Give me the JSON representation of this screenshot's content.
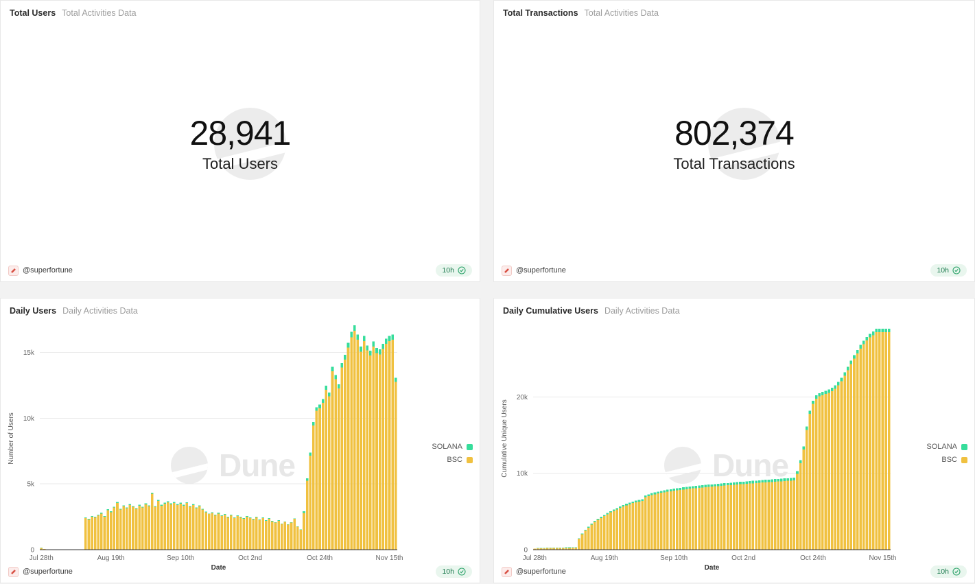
{
  "watermark": {
    "text": "Dune"
  },
  "footer": {
    "author": "@superfortune",
    "refresh": "10h"
  },
  "colors": {
    "bsc": "#F0C140",
    "solana": "#36DD9B",
    "badge_bg": "#E9F6EE",
    "badge_text": "#1D7A4F",
    "axis_line": "#2f2f2f",
    "grid_line": "#e9e9e9",
    "tick_text": "#666666"
  },
  "panels": {
    "total_users": {
      "title": "Total Users",
      "subtitle": "Total Activities Data",
      "value": "28,941",
      "label": "Total Users"
    },
    "total_transactions": {
      "title": "Total Transactions",
      "subtitle": "Total Activities Data",
      "value": "802,374",
      "label": "Total Transactions"
    },
    "daily_users": {
      "title": "Daily Users",
      "subtitle": "Daily Activities Data"
    },
    "daily_cumulative_users": {
      "title": "Daily Cumulative Users",
      "subtitle": "Daily Activities Data"
    }
  },
  "chart_data": [
    {
      "type": "bar",
      "stacked": true,
      "title": "Daily Users",
      "xlabel": "Date",
      "ylabel": "Number of Users",
      "x_start": "Jul 28th",
      "x_end": "Nov 17th",
      "x_cadence": "daily",
      "n_points": 113,
      "ylim": [
        0,
        16900
      ],
      "grid": "horizontal",
      "legend_position": "right",
      "x_ticks": [
        {
          "index": 0,
          "label": "Jul 28th"
        },
        {
          "index": 22,
          "label": "Aug 19th"
        },
        {
          "index": 44,
          "label": "Sep 10th"
        },
        {
          "index": 66,
          "label": "Oct 2nd"
        },
        {
          "index": 88,
          "label": "Oct 24th"
        },
        {
          "index": 110,
          "label": "Nov 15th"
        }
      ],
      "y_ticks": [
        {
          "value": 0,
          "label": "0"
        },
        {
          "value": 5000,
          "label": "5k"
        },
        {
          "value": 10000,
          "label": "10k"
        },
        {
          "value": 15000,
          "label": "15k"
        }
      ],
      "legend": [
        {
          "label": "SOLANA",
          "color": "#36DD9B"
        },
        {
          "label": "BSC",
          "color": "#F0C140"
        }
      ],
      "series": [
        {
          "name": "BSC",
          "color": "#F0C140",
          "values": [
            120,
            50,
            20,
            8,
            8,
            8,
            8,
            8,
            8,
            8,
            8,
            8,
            8,
            8,
            2400,
            2300,
            2500,
            2450,
            2600,
            2750,
            2500,
            3000,
            2850,
            3200,
            3550,
            3050,
            3300,
            3150,
            3400,
            3250,
            3100,
            3350,
            3200,
            3450,
            3300,
            4250,
            3250,
            3700,
            3350,
            3500,
            3600,
            3450,
            3550,
            3400,
            3500,
            3350,
            3550,
            3250,
            3400,
            3150,
            3300,
            3050,
            2850,
            2700,
            2800,
            2600,
            2750,
            2550,
            2650,
            2450,
            2600,
            2400,
            2550,
            2450,
            2350,
            2500,
            2400,
            2300,
            2450,
            2250,
            2400,
            2200,
            2350,
            2150,
            2050,
            2200,
            1950,
            2100,
            1900,
            2050,
            2350,
            1750,
            1500,
            2800,
            5250,
            7150,
            9450,
            10550,
            10750,
            11150,
            12150,
            11650,
            13550,
            12950,
            12250,
            13850,
            14450,
            15350,
            16150,
            16650,
            15950,
            15050,
            15850,
            15150,
            14750,
            15450,
            14950,
            14850,
            15250,
            15650,
            15850,
            15950,
            12750
          ]
        },
        {
          "name": "SOLANA",
          "color": "#36DD9B",
          "values": [
            25,
            10,
            5,
            2,
            2,
            2,
            2,
            2,
            2,
            2,
            2,
            2,
            2,
            2,
            55,
            50,
            60,
            55,
            65,
            60,
            50,
            70,
            60,
            65,
            75,
            60,
            70,
            65,
            70,
            65,
            60,
            70,
            65,
            70,
            65,
            90,
            70,
            80,
            70,
            75,
            80,
            75,
            80,
            70,
            75,
            65,
            60,
            70,
            60,
            65,
            55,
            60,
            55,
            50,
            55,
            50,
            55,
            50,
            50,
            45,
            50,
            45,
            50,
            45,
            45,
            50,
            45,
            45,
            50,
            40,
            45,
            40,
            45,
            40,
            40,
            45,
            40,
            50,
            35,
            30,
            30,
            30,
            30,
            130,
            180,
            220,
            260,
            280,
            280,
            290,
            310,
            300,
            340,
            330,
            310,
            350,
            360,
            380,
            400,
            410,
            400,
            380,
            400,
            380,
            370,
            390,
            380,
            380,
            390,
            400,
            400,
            400,
            320
          ]
        }
      ]
    },
    {
      "type": "bar",
      "stacked": true,
      "title": "Daily Cumulative Users",
      "xlabel": "Date",
      "ylabel": "Cumulative Unique Users",
      "x_start": "Jul 28th",
      "x_end": "Nov 17th",
      "x_cadence": "daily",
      "n_points": 113,
      "ylim": [
        0,
        29100
      ],
      "grid": "horizontal",
      "legend_position": "right",
      "x_ticks": [
        {
          "index": 0,
          "label": "Jul 28th"
        },
        {
          "index": 22,
          "label": "Aug 19th"
        },
        {
          "index": 44,
          "label": "Sep 10th"
        },
        {
          "index": 66,
          "label": "Oct 2nd"
        },
        {
          "index": 88,
          "label": "Oct 24th"
        },
        {
          "index": 110,
          "label": "Nov 15th"
        }
      ],
      "y_ticks": [
        {
          "value": 0,
          "label": "0"
        },
        {
          "value": 10000,
          "label": "10k"
        },
        {
          "value": 20000,
          "label": "20k"
        }
      ],
      "legend": [
        {
          "label": "SOLANA",
          "color": "#36DD9B"
        },
        {
          "label": "BSC",
          "color": "#F0C140"
        }
      ],
      "series": [
        {
          "name": "BSC",
          "color": "#F0C140",
          "values": [
            120,
            170,
            190,
            198,
            207,
            212,
            219,
            225,
            230,
            236,
            241,
            246,
            251,
            256,
            1430,
            2015,
            2500,
            2888,
            3278,
            3618,
            3910,
            4152,
            4395,
            4638,
            4881,
            5075,
            5269,
            5463,
            5657,
            5802,
            5947,
            6092,
            6188,
            6284,
            6380,
            6865,
            7010,
            7155,
            7251,
            7347,
            7443,
            7520,
            7587,
            7654,
            7711,
            7768,
            7825,
            7877,
            7925,
            7973,
            8016,
            8059,
            8102,
            8140,
            8178,
            8216,
            8254,
            8292,
            8325,
            8358,
            8391,
            8424,
            8457,
            8490,
            8523,
            8556,
            8589,
            8622,
            8655,
            8688,
            8721,
            8754,
            8782,
            8810,
            8838,
            8866,
            8894,
            8922,
            8950,
            8978,
            9006,
            9034,
            9062,
            9935,
            11320,
            13105,
            15695,
            17788,
            19082,
            19778,
            20074,
            20221,
            20368,
            20545,
            20742,
            21059,
            21506,
            22053,
            22750,
            23497,
            24294,
            24991,
            25688,
            26335,
            26882,
            27380,
            27778,
            28076,
            28465,
            28465,
            28465,
            28465,
            28465
          ]
        },
        {
          "name": "SOLANA",
          "color": "#36DD9B",
          "values": [
            30,
            40,
            45,
            47,
            48,
            50,
            51,
            52,
            53,
            54,
            55,
            56,
            57,
            58,
            70,
            85,
            100,
            112,
            122,
            132,
            140,
            148,
            155,
            162,
            169,
            175,
            181,
            187,
            193,
            198,
            203,
            208,
            212,
            216,
            220,
            235,
            240,
            245,
            249,
            253,
            257,
            260,
            263,
            266,
            269,
            272,
            275,
            278,
            280,
            282,
            284,
            286,
            288,
            290,
            292,
            294,
            296,
            298,
            300,
            302,
            304,
            306,
            308,
            310,
            312,
            314,
            316,
            318,
            320,
            322,
            324,
            326,
            328,
            330,
            332,
            334,
            336,
            338,
            340,
            342,
            344,
            346,
            348,
            365,
            380,
            395,
            405,
            412,
            418,
            422,
            426,
            429,
            432,
            435,
            438,
            441,
            444,
            447,
            450,
            453,
            456,
            459,
            462,
            465,
            468,
            470,
            472,
            474,
            476,
            476,
            476,
            476,
            476
          ]
        }
      ]
    }
  ]
}
